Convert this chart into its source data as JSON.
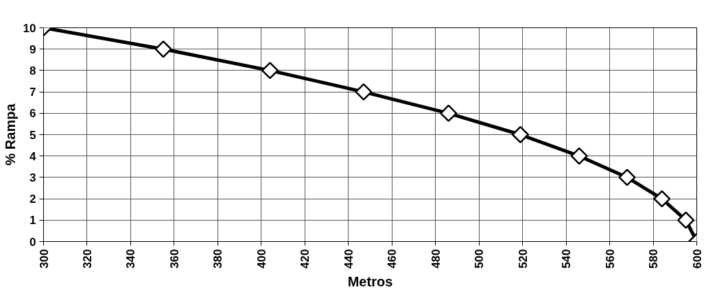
{
  "chart_data": {
    "type": "line",
    "xlabel": "Metros",
    "ylabel": "% Rampa",
    "x": [
      300,
      355,
      404,
      447,
      486,
      519,
      546,
      568,
      584,
      595,
      600
    ],
    "series": [
      {
        "color": "#000000",
        "values": [
          10,
          9,
          8,
          7,
          6,
          5,
          4,
          3,
          2,
          1,
          0
        ]
      }
    ],
    "xlim": [
      300,
      600
    ],
    "xticks": [
      300,
      320,
      340,
      360,
      380,
      400,
      420,
      440,
      460,
      480,
      500,
      520,
      540,
      560,
      580,
      600
    ],
    "ylim": [
      0,
      10
    ],
    "yticks": [
      0,
      1,
      2,
      3,
      4,
      5,
      6,
      7,
      8,
      9,
      10
    ],
    "grid": true,
    "marker": "diamond",
    "line_style": "solid"
  }
}
